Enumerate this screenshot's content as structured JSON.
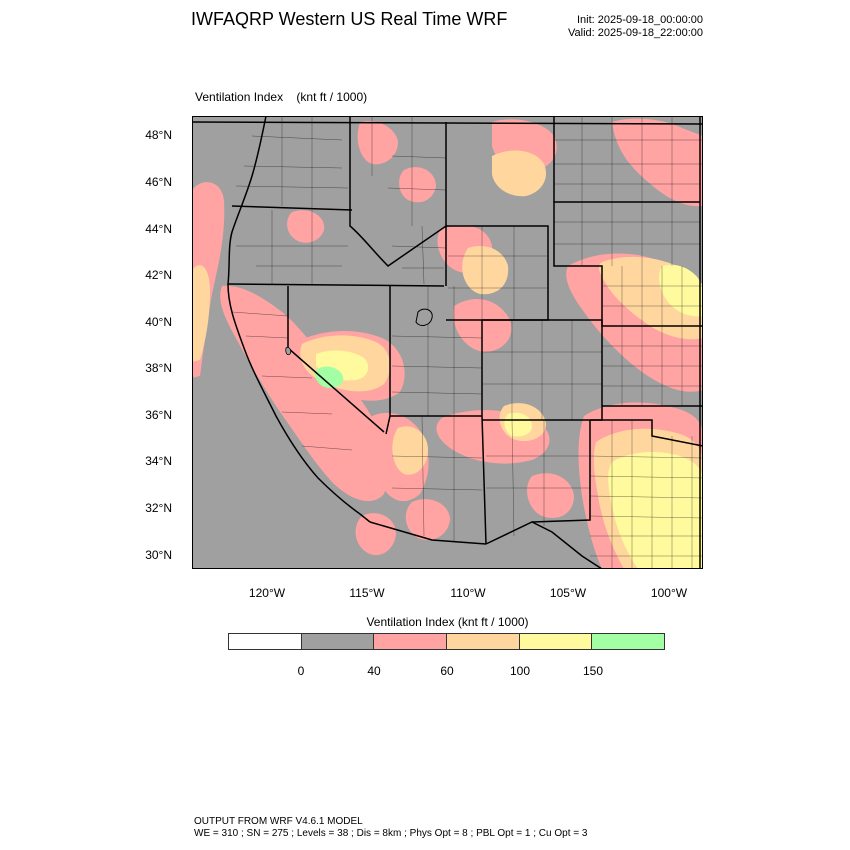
{
  "header": {
    "title": "IWFAQRP Western US Real Time WRF",
    "init": "Init: 2025-09-18_00:00:00",
    "valid": "Valid: 2025-09-18_22:00:00"
  },
  "field": {
    "name": "Ventilation Index",
    "units": "(knt ft / 1000)"
  },
  "map": {
    "lat_labels": [
      "48°N",
      "46°N",
      "44°N",
      "42°N",
      "40°N",
      "38°N",
      "36°N",
      "34°N",
      "32°N",
      "30°N"
    ],
    "lon_labels": [
      "120°W",
      "115°W",
      "110°W",
      "105°W",
      "100°W"
    ],
    "fill_colors": {
      "lt0": "#ffffff",
      "c0_40": "#a0a0a0",
      "c40_60": "#ffa3a3",
      "c60_100": "#ffd79e",
      "c100_150": "#fffa9e",
      "c150": "#a3ffa3"
    },
    "border_color": "#000000"
  },
  "colorbar": {
    "title": "Ventilation Index   (knt ft / 1000)",
    "segments": [
      {
        "color": "#ffffff"
      },
      {
        "color": "#a0a0a0"
      },
      {
        "color": "#ffa3a3"
      },
      {
        "color": "#ffd79e"
      },
      {
        "color": "#fffa9e"
      },
      {
        "color": "#a3ffa3"
      }
    ],
    "ticks": [
      "0",
      "40",
      "60",
      "100",
      "150"
    ]
  },
  "footer": {
    "line1": "OUTPUT FROM WRF V4.6.1 MODEL",
    "line2": "WE = 310 ; SN = 275 ; Levels = 38 ; Dis = 8km ; Phys Opt = 8 ; PBL Opt = 1 ; Cu Opt = 3"
  }
}
